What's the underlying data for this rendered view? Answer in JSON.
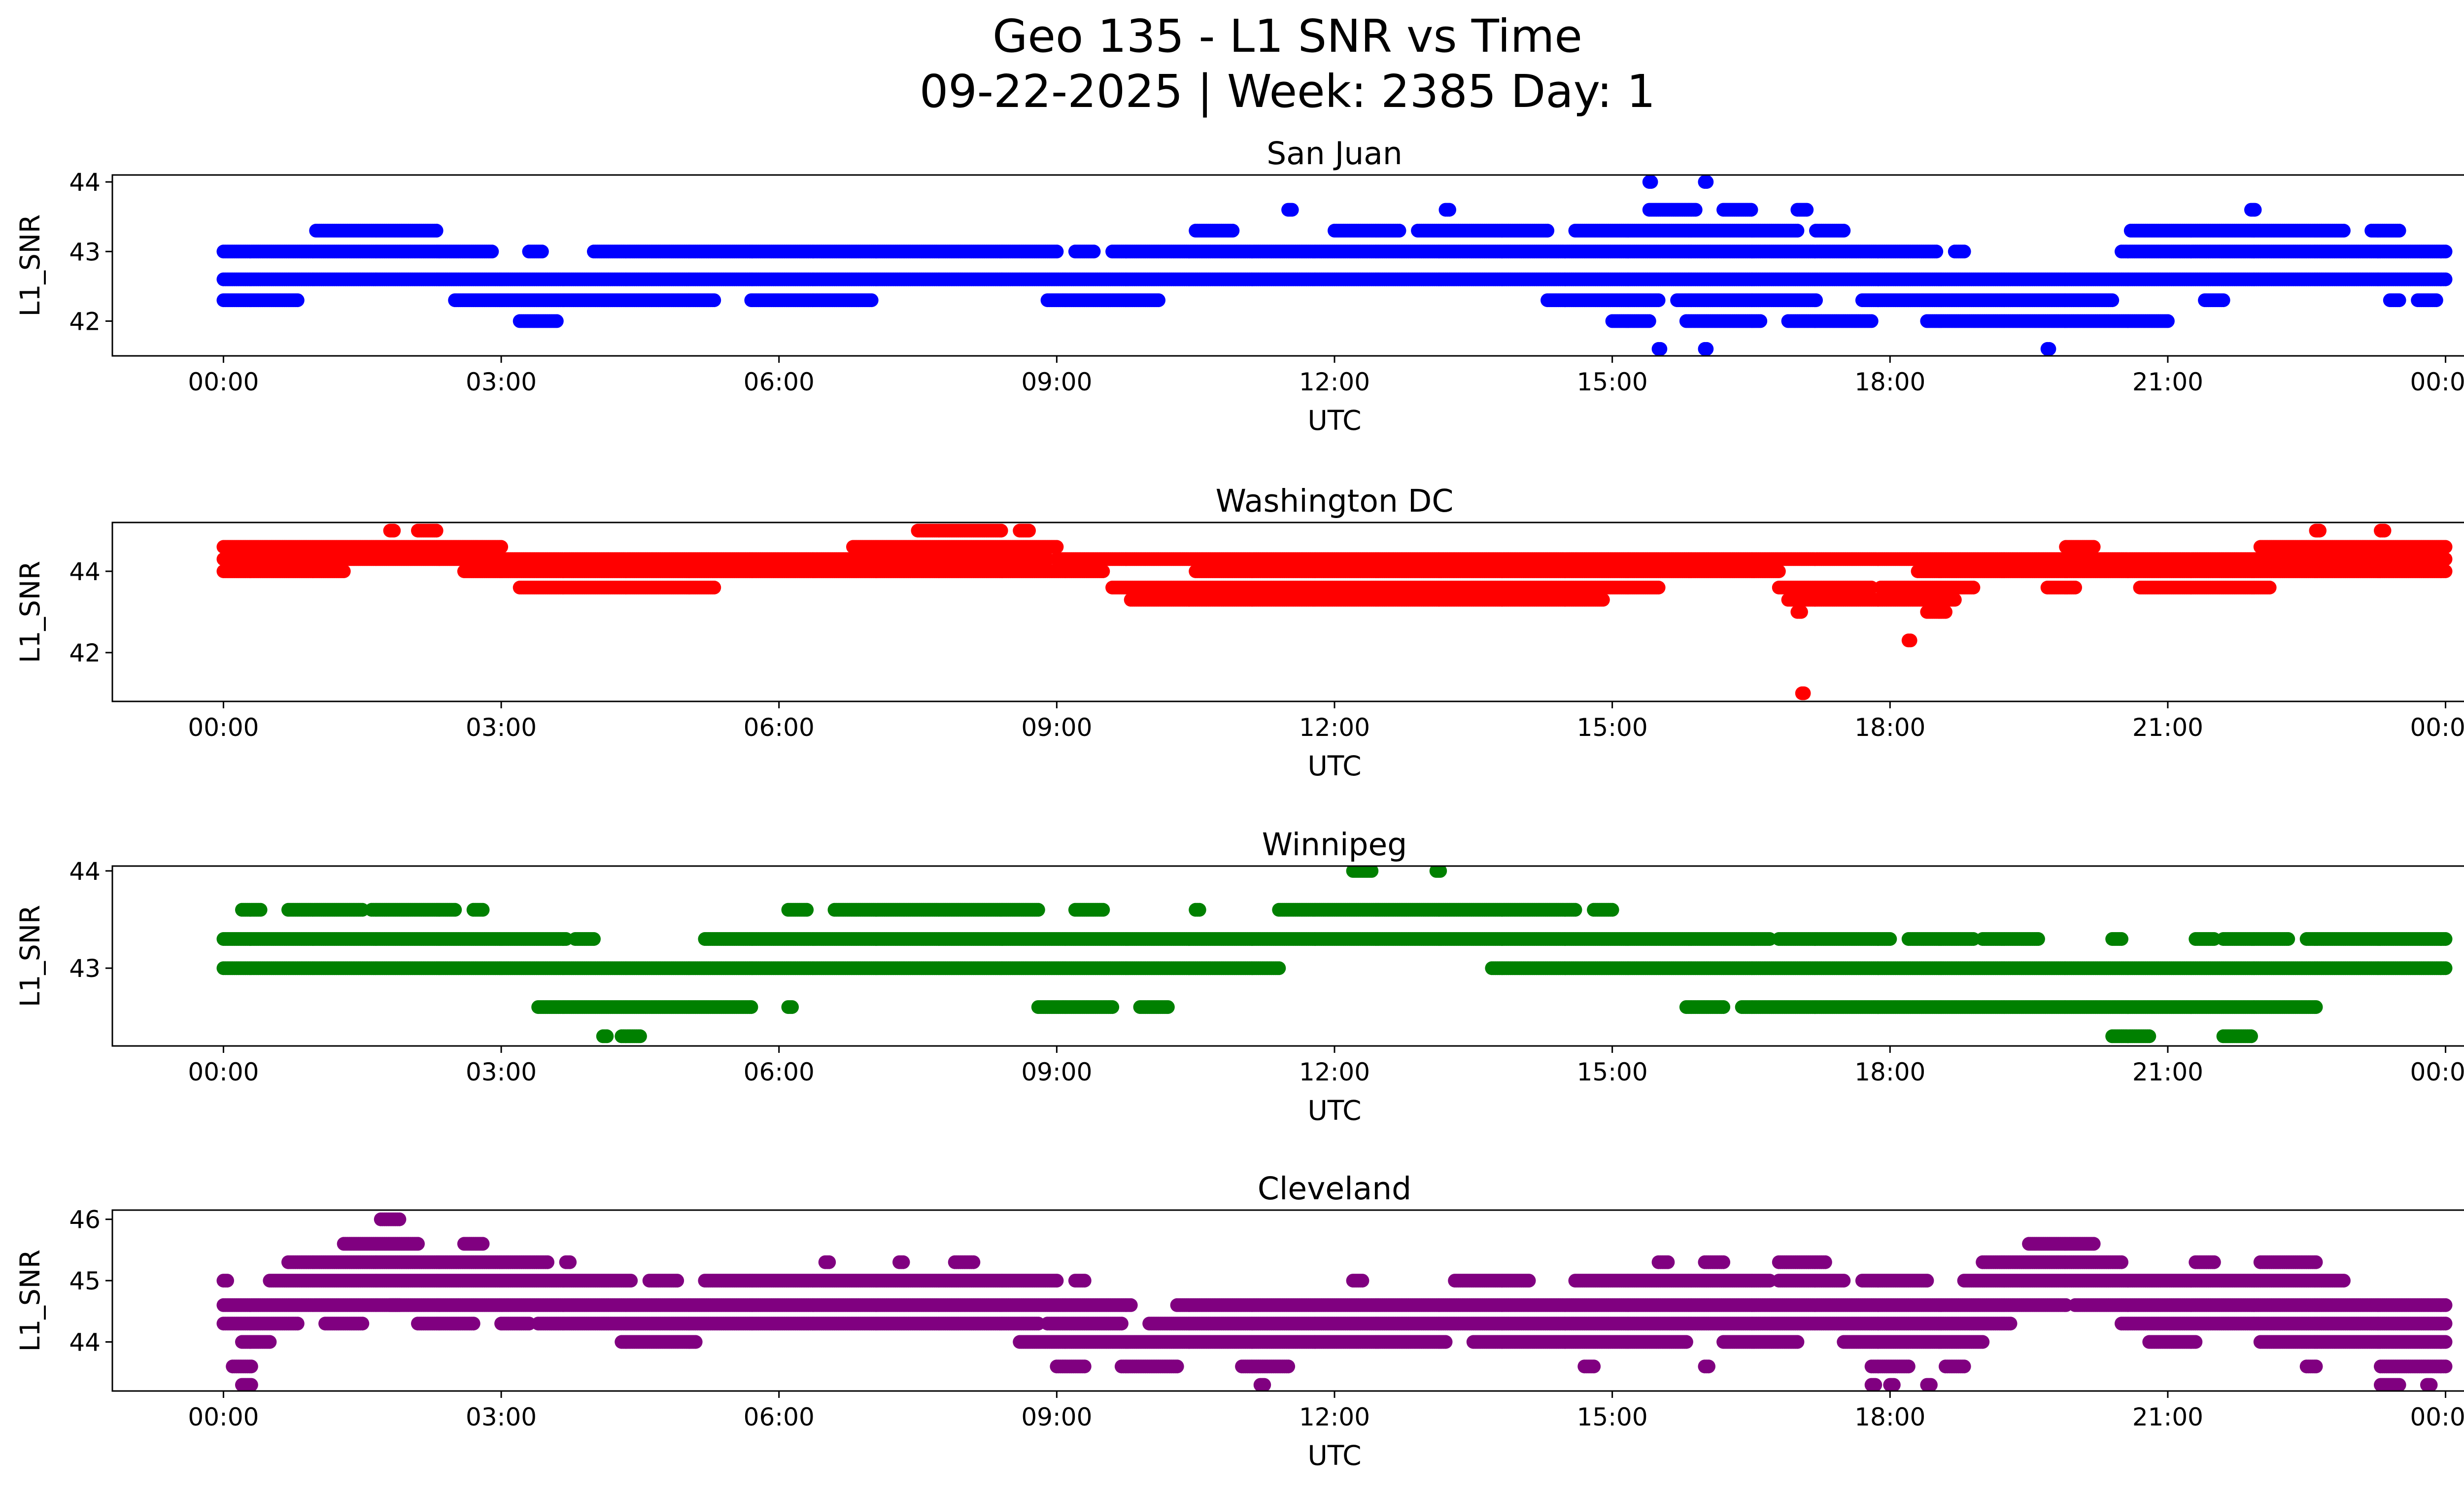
{
  "figure": {
    "title_line1": "Geo 135 - L1 SNR vs Time",
    "title_line2": "09-22-2025 | Week: 2385 Day: 1"
  },
  "chart_data": [
    {
      "type": "scatter",
      "title": "San Juan",
      "xlabel": "UTC",
      "ylabel": "L1_SNR",
      "color": "#0000ff",
      "x_ticks": [
        "00:00",
        "03:00",
        "06:00",
        "09:00",
        "12:00",
        "15:00",
        "18:00",
        "21:00",
        "00:00"
      ],
      "x_range_hours": [
        -1.2,
        25.2
      ],
      "y_ticks": [
        42,
        43,
        44
      ],
      "ylim": [
        41.5,
        44.1
      ],
      "levels": [
        {
          "y": 42.6,
          "ranges": [
            [
              0.0,
              24.0
            ]
          ]
        },
        {
          "y": 43.0,
          "ranges": [
            [
              0.0,
              2.9
            ],
            [
              3.3,
              3.45
            ],
            [
              4.0,
              9.0
            ],
            [
              9.2,
              9.4
            ],
            [
              9.6,
              18.5
            ],
            [
              18.7,
              18.8
            ],
            [
              20.5,
              24.0
            ]
          ]
        },
        {
          "y": 42.3,
          "ranges": [
            [
              0.0,
              0.8
            ],
            [
              2.5,
              5.3
            ],
            [
              5.7,
              7.0
            ],
            [
              8.9,
              10.1
            ],
            [
              14.3,
              15.5
            ],
            [
              15.7,
              17.2
            ],
            [
              17.7,
              20.4
            ],
            [
              21.4,
              21.6
            ],
            [
              23.4,
              23.5
            ],
            [
              23.7,
              23.9
            ]
          ]
        },
        {
          "y": 43.3,
          "ranges": [
            [
              1.0,
              2.3
            ],
            [
              10.5,
              10.9
            ],
            [
              12.0,
              12.7
            ],
            [
              12.9,
              14.3
            ],
            [
              14.6,
              17.0
            ],
            [
              17.2,
              17.5
            ],
            [
              20.6,
              22.9
            ],
            [
              23.2,
              23.5
            ]
          ]
        },
        {
          "y": 42.0,
          "ranges": [
            [
              3.2,
              3.6
            ],
            [
              15.0,
              15.4
            ],
            [
              15.8,
              16.6
            ],
            [
              16.9,
              17.8
            ],
            [
              18.4,
              21.0
            ]
          ]
        },
        {
          "y": 43.6,
          "ranges": [
            [
              11.5,
              11.55
            ],
            [
              13.2,
              13.25
            ],
            [
              15.4,
              15.9
            ],
            [
              16.2,
              16.5
            ],
            [
              17.0,
              17.1
            ],
            [
              21.9,
              21.95
            ]
          ]
        },
        {
          "y": 44.0,
          "ranges": [
            [
              15.4,
              15.42
            ],
            [
              16.0,
              16.02
            ]
          ]
        },
        {
          "y": 41.6,
          "ranges": [
            [
              15.5,
              15.52
            ],
            [
              16.0,
              16.02
            ],
            [
              19.7,
              19.72
            ]
          ]
        }
      ]
    },
    {
      "type": "scatter",
      "title": "Washington DC",
      "xlabel": "UTC",
      "ylabel": "L1_SNR",
      "color": "#ff0000",
      "x_ticks": [
        "00:00",
        "03:00",
        "06:00",
        "09:00",
        "12:00",
        "15:00",
        "18:00",
        "21:00",
        "00:00"
      ],
      "x_range_hours": [
        -1.2,
        25.2
      ],
      "y_ticks": [
        42,
        44
      ],
      "ylim": [
        40.8,
        45.2
      ],
      "levels": [
        {
          "y": 44.3,
          "ranges": [
            [
              0.0,
              8.9
            ],
            [
              9.0,
              24.0
            ]
          ]
        },
        {
          "y": 44.0,
          "ranges": [
            [
              0.0,
              1.3
            ],
            [
              2.6,
              9.5
            ],
            [
              10.5,
              16.8
            ],
            [
              18.3,
              24.0
            ]
          ]
        },
        {
          "y": 44.6,
          "ranges": [
            [
              0.0,
              3.0
            ],
            [
              6.8,
              9.0
            ],
            [
              19.9,
              20.2
            ],
            [
              22.0,
              24.0
            ]
          ]
        },
        {
          "y": 43.6,
          "ranges": [
            [
              3.2,
              5.3
            ],
            [
              9.6,
              15.5
            ],
            [
              16.8,
              17.8
            ],
            [
              17.9,
              18.9
            ],
            [
              19.7,
              20.0
            ],
            [
              20.7,
              22.1
            ]
          ]
        },
        {
          "y": 43.3,
          "ranges": [
            [
              9.8,
              14.9
            ],
            [
              16.9,
              18.7
            ]
          ]
        },
        {
          "y": 45.0,
          "ranges": [
            [
              1.8,
              1.85
            ],
            [
              2.1,
              2.3
            ],
            [
              7.5,
              8.4
            ],
            [
              8.6,
              8.7
            ],
            [
              22.6,
              22.65
            ],
            [
              23.3,
              23.35
            ]
          ]
        },
        {
          "y": 43.0,
          "ranges": [
            [
              17.0,
              17.05
            ],
            [
              18.4,
              18.6
            ]
          ]
        },
        {
          "y": 42.3,
          "ranges": [
            [
              18.2,
              18.22
            ]
          ]
        },
        {
          "y": 41.0,
          "ranges": [
            [
              17.05,
              17.07
            ]
          ]
        }
      ]
    },
    {
      "type": "scatter",
      "title": "Winnipeg",
      "xlabel": "UTC",
      "ylabel": "L1_SNR",
      "color": "#008000",
      "x_ticks": [
        "00:00",
        "03:00",
        "06:00",
        "09:00",
        "12:00",
        "15:00",
        "18:00",
        "21:00",
        "00:00"
      ],
      "x_range_hours": [
        -1.2,
        25.2
      ],
      "y_ticks": [
        43,
        44
      ],
      "ylim": [
        42.2,
        44.05
      ],
      "levels": [
        {
          "y": 43.3,
          "ranges": [
            [
              0.0,
              3.7
            ],
            [
              3.8,
              4.0
            ],
            [
              5.2,
              16.7
            ],
            [
              16.8,
              18.0
            ],
            [
              18.2,
              18.9
            ],
            [
              19.0,
              19.6
            ],
            [
              20.4,
              20.5
            ],
            [
              21.3,
              21.5
            ],
            [
              21.6,
              22.3
            ],
            [
              22.5,
              24.0
            ]
          ]
        },
        {
          "y": 43.0,
          "ranges": [
            [
              0.0,
              11.4
            ],
            [
              13.7,
              24.0
            ]
          ]
        },
        {
          "y": 43.6,
          "ranges": [
            [
              0.2,
              0.4
            ],
            [
              0.7,
              1.5
            ],
            [
              1.6,
              2.5
            ],
            [
              2.7,
              2.8
            ],
            [
              6.1,
              6.3
            ],
            [
              6.6,
              8.8
            ],
            [
              9.2,
              9.5
            ],
            [
              10.5,
              10.55
            ],
            [
              11.4,
              14.6
            ],
            [
              14.8,
              15.0
            ]
          ]
        },
        {
          "y": 42.6,
          "ranges": [
            [
              3.4,
              5.7
            ],
            [
              6.1,
              6.15
            ],
            [
              8.8,
              9.6
            ],
            [
              9.9,
              10.2
            ],
            [
              15.8,
              16.2
            ],
            [
              16.4,
              22.6
            ]
          ]
        },
        {
          "y": 44.0,
          "ranges": [
            [
              12.2,
              12.4
            ],
            [
              13.1,
              13.15
            ]
          ]
        },
        {
          "y": 42.3,
          "ranges": [
            [
              4.1,
              4.15
            ],
            [
              4.3,
              4.5
            ],
            [
              20.4,
              20.8
            ],
            [
              21.6,
              21.9
            ]
          ]
        }
      ]
    },
    {
      "type": "scatter",
      "title": "Cleveland",
      "xlabel": "UTC",
      "ylabel": "L1_SNR",
      "color": "#800080",
      "x_ticks": [
        "00:00",
        "03:00",
        "06:00",
        "09:00",
        "12:00",
        "15:00",
        "18:00",
        "21:00",
        "00:00"
      ],
      "x_range_hours": [
        -1.2,
        25.2
      ],
      "y_ticks": [
        44,
        45,
        46
      ],
      "ylim": [
        43.2,
        46.15
      ],
      "levels": [
        {
          "y": 44.6,
          "ranges": [
            [
              0.0,
              9.8
            ],
            [
              10.3,
              19.9
            ],
            [
              20.0,
              24.0
            ]
          ]
        },
        {
          "y": 44.3,
          "ranges": [
            [
              0.0,
              0.8
            ],
            [
              1.1,
              1.5
            ],
            [
              2.1,
              2.7
            ],
            [
              3.0,
              3.3
            ],
            [
              3.4,
              8.8
            ],
            [
              8.9,
              9.7
            ],
            [
              10.0,
              19.3
            ],
            [
              20.5,
              24.0
            ]
          ]
        },
        {
          "y": 45.0,
          "ranges": [
            [
              0.0,
              0.05
            ],
            [
              0.5,
              4.4
            ],
            [
              4.6,
              4.9
            ],
            [
              5.2,
              9.0
            ],
            [
              9.2,
              9.3
            ],
            [
              12.2,
              12.3
            ],
            [
              13.3,
              14.1
            ],
            [
              14.6,
              16.7
            ],
            [
              16.8,
              17.5
            ],
            [
              17.7,
              18.4
            ],
            [
              18.8,
              22.9
            ]
          ]
        },
        {
          "y": 45.3,
          "ranges": [
            [
              0.7,
              3.5
            ],
            [
              3.7,
              3.75
            ],
            [
              6.5,
              6.55
            ],
            [
              7.3,
              7.35
            ],
            [
              7.9,
              8.1
            ],
            [
              15.5,
              15.6
            ],
            [
              16.0,
              16.2
            ],
            [
              16.8,
              17.3
            ],
            [
              19.0,
              20.5
            ],
            [
              21.3,
              21.5
            ],
            [
              22.0,
              22.6
            ]
          ]
        },
        {
          "y": 45.6,
          "ranges": [
            [
              1.3,
              2.1
            ],
            [
              2.6,
              2.8
            ],
            [
              19.5,
              20.2
            ]
          ]
        },
        {
          "y": 44.0,
          "ranges": [
            [
              0.2,
              0.5
            ],
            [
              4.3,
              5.1
            ],
            [
              8.6,
              13.2
            ],
            [
              13.5,
              15.8
            ],
            [
              16.2,
              17.0
            ],
            [
              17.5,
              19.0
            ],
            [
              20.8,
              21.3
            ],
            [
              22.0,
              24.0
            ]
          ]
        },
        {
          "y": 43.6,
          "ranges": [
            [
              0.1,
              0.3
            ],
            [
              9.0,
              9.3
            ],
            [
              9.7,
              10.3
            ],
            [
              11.0,
              11.5
            ],
            [
              14.7,
              14.8
            ],
            [
              16.0,
              16.05
            ],
            [
              17.8,
              18.2
            ],
            [
              18.6,
              18.8
            ],
            [
              22.5,
              22.6
            ],
            [
              23.3,
              24.0
            ]
          ]
        },
        {
          "y": 43.3,
          "ranges": [
            [
              0.2,
              0.3
            ],
            [
              11.2,
              11.25
            ],
            [
              17.8,
              17.85
            ],
            [
              18.0,
              18.05
            ],
            [
              18.4,
              18.45
            ],
            [
              23.3,
              23.5
            ],
            [
              23.8,
              23.85
            ]
          ]
        },
        {
          "y": 46.0,
          "ranges": [
            [
              1.7,
              1.9
            ]
          ]
        },
        {
          "y": 44.6,
          "ranges": [
            [
              1.8,
              1.9
            ]
          ]
        }
      ]
    }
  ]
}
